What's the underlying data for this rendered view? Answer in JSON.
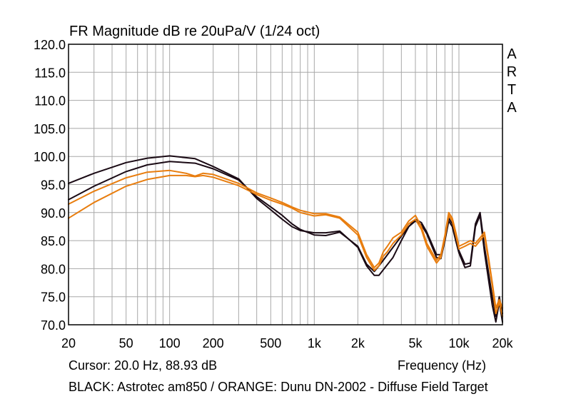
{
  "chart_data": {
    "type": "line",
    "title": "FR Magnitude dB re 20uPa/V (1/24 oct)",
    "watermark": "ARTA",
    "xlabel": "Frequency (Hz)",
    "xscale": "log",
    "xlim": [
      20,
      20000
    ],
    "ylim": [
      70,
      120
    ],
    "grid": true,
    "x_tick_labels": [
      "20",
      "50",
      "100",
      "200",
      "500",
      "1k",
      "2k",
      "5k",
      "10k",
      "20k"
    ],
    "y_tick_labels": [
      "70.0",
      "75.0",
      "80.0",
      "85.0",
      "90.0",
      "95.0",
      "100.0",
      "105.0",
      "110.0",
      "115.0",
      "120.0"
    ],
    "cursor": "Cursor: 20.0 Hz, 88.93 dB",
    "legend": "BLACK: Astrotec am850 / ORANGE: Dunu DN-2002 - Diffuse Field Target",
    "colors": {
      "black": "#1a0a14",
      "orange": "#e87d0e"
    },
    "series": [
      {
        "color": "black",
        "x": [
          20,
          30,
          50,
          70,
          100,
          150,
          200,
          300,
          400,
          500,
          600,
          700,
          800,
          1000,
          1200,
          1500,
          2000,
          2300,
          2600,
          2800,
          3000,
          3500,
          4000,
          4500,
          5000,
          5500,
          6000,
          7000,
          7500,
          8000,
          8500,
          9000,
          9500,
          10000,
          11000,
          12000,
          13000,
          14000,
          15000,
          17000,
          18000,
          19000,
          20000
        ],
        "y": [
          95.2,
          97.0,
          98.9,
          99.7,
          100.1,
          99.6,
          98.2,
          96.0,
          92.5,
          90.5,
          88.8,
          87.5,
          86.8,
          86.4,
          86.4,
          86.7,
          83.8,
          80.5,
          78.8,
          78.8,
          79.8,
          82.0,
          85.0,
          87.5,
          88.8,
          88.2,
          86.5,
          82.5,
          82.5,
          85.5,
          89.0,
          88.0,
          85.5,
          83.2,
          80.8,
          81.0,
          88.0,
          90.0,
          84.0,
          75.0,
          71.5,
          75.0,
          72.0
        ]
      },
      {
        "color": "black",
        "x": [
          20,
          30,
          50,
          70,
          100,
          150,
          200,
          300,
          400,
          500,
          600,
          700,
          800,
          1000,
          1200,
          1500,
          2000,
          2300,
          2600,
          2800,
          3000,
          3500,
          4000,
          4500,
          5000,
          5500,
          6000,
          7000,
          7500,
          8000,
          8500,
          9000,
          9500,
          10000,
          11000,
          12000,
          13000,
          14000,
          15000,
          17000,
          18000,
          19000,
          20000
        ],
        "y": [
          92.3,
          94.7,
          97.3,
          98.5,
          99.1,
          98.8,
          97.8,
          95.8,
          92.8,
          91.0,
          89.5,
          88.0,
          87.0,
          86.0,
          85.9,
          86.5,
          84.0,
          80.8,
          79.5,
          80.5,
          81.5,
          83.8,
          85.8,
          87.5,
          88.5,
          87.8,
          86.2,
          82.0,
          81.8,
          85.0,
          88.5,
          87.5,
          85.0,
          82.8,
          80.2,
          80.5,
          87.5,
          89.5,
          83.0,
          73.5,
          70.5,
          74.0,
          70.5
        ]
      },
      {
        "color": "orange",
        "x": [
          20,
          30,
          50,
          70,
          100,
          130,
          150,
          170,
          200,
          300,
          400,
          500,
          600,
          700,
          800,
          1000,
          1200,
          1500,
          2000,
          2300,
          2600,
          2800,
          3000,
          3200,
          3500,
          4000,
          4500,
          5000,
          5500,
          6000,
          7000,
          7500,
          8000,
          8500,
          9000,
          9500,
          10000,
          11000,
          12000,
          13000,
          14000,
          15000,
          16000,
          17000,
          18000,
          19000,
          20000
        ],
        "y": [
          91.5,
          93.8,
          96.2,
          97.2,
          97.5,
          97.0,
          96.5,
          97.0,
          96.8,
          95.2,
          93.5,
          92.6,
          91.8,
          91.0,
          90.4,
          89.8,
          89.8,
          89.2,
          86.5,
          82.5,
          80.2,
          81.0,
          83.0,
          84.0,
          85.5,
          86.5,
          88.5,
          89.5,
          87.5,
          84.5,
          81.5,
          82.5,
          86.0,
          90.0,
          89.0,
          86.5,
          84.0,
          84.5,
          85.0,
          84.5,
          85.5,
          86.5,
          82.0,
          77.5,
          73.0,
          74.5,
          73.0
        ]
      },
      {
        "color": "orange",
        "x": [
          20,
          30,
          50,
          70,
          100,
          130,
          150,
          170,
          200,
          300,
          400,
          500,
          600,
          700,
          800,
          1000,
          1200,
          1500,
          2000,
          2300,
          2600,
          2800,
          3000,
          3200,
          3500,
          4000,
          4500,
          5000,
          5500,
          6000,
          7000,
          7500,
          8000,
          8500,
          9000,
          9500,
          10000,
          11000,
          12000,
          13000,
          14000,
          15000,
          16000,
          17000,
          18000,
          19000,
          20000
        ],
        "y": [
          89.0,
          91.8,
          94.7,
          95.9,
          96.6,
          96.6,
          96.4,
          96.6,
          96.3,
          94.8,
          93.2,
          92.2,
          91.5,
          90.8,
          90.0,
          89.4,
          89.6,
          89.0,
          86.0,
          82.0,
          79.7,
          80.5,
          82.2,
          83.0,
          84.5,
          86.0,
          88.0,
          88.8,
          87.0,
          84.0,
          81.0,
          82.0,
          85.5,
          89.5,
          88.5,
          86.0,
          83.5,
          84.0,
          84.5,
          84.0,
          85.0,
          86.0,
          81.5,
          77.0,
          72.0,
          74.0,
          71.5
        ]
      }
    ]
  }
}
